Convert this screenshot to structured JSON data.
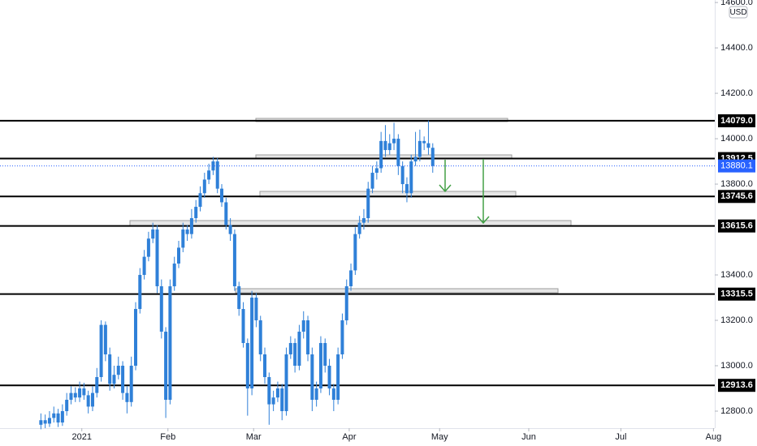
{
  "chart_data": {
    "type": "candlestick",
    "currency": "USD",
    "color": "#2f80d8",
    "xlim": [
      -9.5,
      156.5
    ],
    "xticks": [
      {
        "value": 9.5,
        "label": "2021"
      },
      {
        "value": 29.5,
        "label": "Feb"
      },
      {
        "value": 49.4,
        "label": "Mar"
      },
      {
        "value": 71.6,
        "label": "Apr"
      },
      {
        "value": 92.6,
        "label": "May"
      },
      {
        "value": 113.3,
        "label": "Jun"
      },
      {
        "value": 134.7,
        "label": "Jul"
      },
      {
        "value": 156.2,
        "label": "Aug"
      }
    ],
    "ylim": [
      12725,
      14611
    ],
    "yticks": [
      {
        "value": 14600,
        "label": "14600.0"
      },
      {
        "value": 14400,
        "label": "14400.0"
      },
      {
        "value": 14200,
        "label": "14200.0"
      },
      {
        "value": 14000,
        "label": "14000.0"
      },
      {
        "value": 13800,
        "label": "13800.0"
      },
      {
        "value": 13400,
        "label": "13400.0"
      },
      {
        "value": 13200,
        "label": "13200.0"
      },
      {
        "value": 13000,
        "label": "13000.0"
      },
      {
        "value": 12800,
        "label": "12800.0"
      }
    ],
    "levels": [
      {
        "value": 14079.0,
        "label": "14079.0"
      },
      {
        "value": 13912.5,
        "label": "13912.5"
      },
      {
        "value": 13745.6,
        "label": "13745.6"
      },
      {
        "value": 13615.6,
        "label": "13615.6"
      },
      {
        "value": 13315.5,
        "label": "13315.5"
      },
      {
        "value": 12913.6,
        "label": "12913.6"
      }
    ],
    "last_price": 13880.1,
    "last_price_color": "#2962ff",
    "open": [
      12740,
      12760,
      12745,
      12770,
      12790,
      12750,
      12800,
      12850,
      12880,
      12860,
      12900,
      12870,
      12820,
      12880,
      12950,
      13180,
      13050,
      12920,
      12960,
      13000,
      12880,
      12840,
      13000,
      13250,
      13400,
      13480,
      13560,
      13600,
      13350,
      13150,
      12850,
      13350,
      13450,
      13520,
      13600,
      13580,
      13650,
      13700,
      13760,
      13820,
      13860,
      13900,
      13780,
      13720,
      13620,
      13580,
      13350,
      13250,
      13100,
      12900,
      13300,
      13200,
      13050,
      12950,
      12830,
      12860,
      12900,
      12800,
      13050,
      13100,
      13000,
      13150,
      13200,
      13050,
      12850,
      12900,
      13100,
      13000,
      12900,
      12850,
      13050,
      13200,
      13350,
      13420,
      13580,
      13630,
      13650,
      13780,
      13850,
      13870,
      13990,
      13950,
      13980,
      14000,
      13880,
      13800,
      13760,
      13900,
      13920,
      13990,
      13980,
      13960
    ],
    "high": [
      12790,
      12785,
      12800,
      12820,
      12810,
      12830,
      12880,
      12910,
      12905,
      12930,
      12925,
      12890,
      12910,
      12990,
      13200,
      13195,
      13080,
      13000,
      13040,
      13020,
      12910,
      13040,
      13280,
      13430,
      13510,
      13590,
      13630,
      13620,
      13380,
      13170,
      13380,
      13480,
      13550,
      13630,
      13620,
      13690,
      13730,
      13790,
      13850,
      13890,
      13920,
      13915,
      13800,
      13740,
      13650,
      13600,
      13370,
      13280,
      13120,
      13330,
      13320,
      13220,
      13080,
      12970,
      12890,
      12930,
      12920,
      13080,
      13130,
      13120,
      13180,
      13240,
      13220,
      13080,
      12930,
      13130,
      13120,
      13030,
      12920,
      13080,
      13230,
      13380,
      13450,
      13610,
      13660,
      13690,
      13810,
      13880,
      13900,
      14030,
      14060,
      14020,
      14070,
      14020,
      13900,
      13830,
      13930,
      14030,
      14040,
      14010,
      14080,
      13980
    ],
    "low": [
      12720,
      12725,
      12730,
      12750,
      12730,
      12735,
      12780,
      12830,
      12840,
      12840,
      12850,
      12790,
      12800,
      12860,
      12930,
      13020,
      12890,
      12900,
      12940,
      12850,
      12790,
      12820,
      12980,
      13230,
      13380,
      13460,
      13540,
      13320,
      13120,
      12770,
      12830,
      13330,
      13430,
      13500,
      13550,
      13560,
      13630,
      13680,
      13740,
      13800,
      13840,
      13760,
      13700,
      13600,
      13550,
      13330,
      13220,
      13080,
      12780,
      12870,
      13170,
      13020,
      12920,
      12740,
      12800,
      12840,
      12760,
      12780,
      13030,
      12970,
      12980,
      13120,
      13020,
      12800,
      12820,
      12880,
      12970,
      12870,
      12800,
      12830,
      13030,
      13180,
      13330,
      13400,
      13560,
      13600,
      13630,
      13760,
      13820,
      13850,
      13920,
      13930,
      13950,
      13840,
      13760,
      13720,
      13740,
      13880,
      13900,
      13950,
      13930,
      13850
    ],
    "close": [
      12760,
      12745,
      12770,
      12790,
      12750,
      12800,
      12850,
      12880,
      12860,
      12900,
      12870,
      12820,
      12880,
      12950,
      13180,
      13050,
      12920,
      12960,
      13000,
      12880,
      12840,
      13000,
      13250,
      13400,
      13480,
      13560,
      13600,
      13350,
      13150,
      12850,
      13350,
      13450,
      13520,
      13600,
      13580,
      13650,
      13700,
      13760,
      13820,
      13860,
      13900,
      13780,
      13720,
      13620,
      13580,
      13350,
      13250,
      13100,
      12900,
      13300,
      13200,
      13050,
      12950,
      12830,
      12860,
      12900,
      12800,
      13050,
      13100,
      13000,
      13150,
      13200,
      13050,
      12850,
      12900,
      13100,
      13000,
      12900,
      12850,
      13050,
      13200,
      13350,
      13420,
      13580,
      13630,
      13650,
      13780,
      13850,
      13870,
      13990,
      13950,
      13980,
      14000,
      13880,
      13800,
      13760,
      13900,
      13920,
      13990,
      13980,
      13960,
      13880
    ]
  }
}
